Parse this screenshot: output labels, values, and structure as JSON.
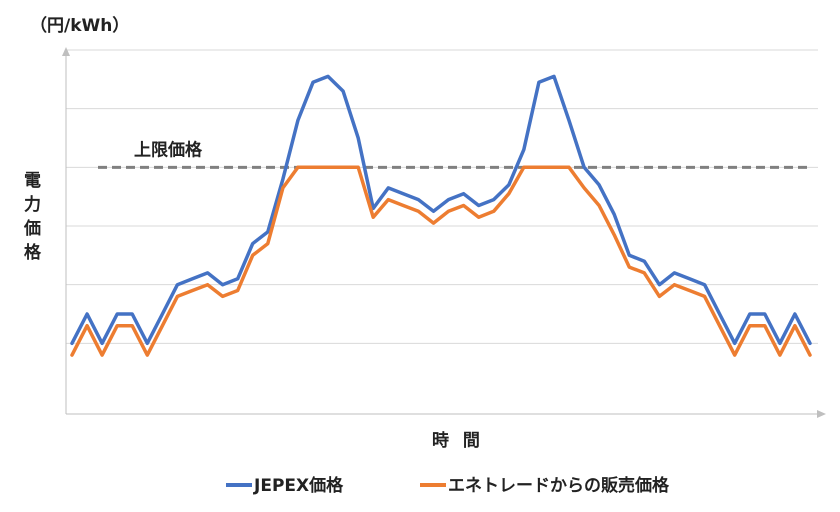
{
  "chart_data": {
    "type": "line",
    "unit_label": "（円/kWh）",
    "ylabel_chars": [
      "電",
      "力",
      "価",
      "格"
    ],
    "xlabel": "時 間",
    "xlim": [
      0,
      49
    ],
    "ylim": [
      0,
      12
    ],
    "y_gridlines": [
      2,
      4,
      6,
      8,
      10,
      12
    ],
    "grid": true,
    "legend_position": "bottom",
    "cap": {
      "label": "上限価格",
      "value": 8,
      "color": "#808080",
      "style": "dashed"
    },
    "series": [
      {
        "name": "JEPEX価格",
        "color": "#4472C4",
        "values": [
          2.0,
          3.0,
          2.0,
          3.0,
          3.0,
          2.0,
          3.0,
          4.0,
          4.2,
          4.4,
          4.0,
          4.2,
          5.4,
          5.8,
          7.6,
          9.6,
          10.9,
          11.1,
          10.6,
          9.0,
          6.6,
          7.3,
          7.1,
          6.9,
          6.5,
          6.9,
          7.1,
          6.7,
          6.9,
          7.4,
          8.6,
          10.9,
          11.1,
          9.6,
          8.0,
          7.4,
          6.4,
          5.0,
          4.8,
          4.0,
          4.4,
          4.2,
          4.0,
          3.0,
          2.0,
          3.0,
          3.0,
          2.0,
          3.0,
          2.0
        ]
      },
      {
        "name": "エネトレードからの販売価格",
        "color": "#ED7D31",
        "values": [
          1.6,
          2.6,
          1.6,
          2.6,
          2.6,
          1.6,
          2.6,
          3.6,
          3.8,
          4.0,
          3.6,
          3.8,
          5.0,
          5.4,
          7.3,
          8.0,
          8.0,
          8.0,
          8.0,
          8.0,
          6.3,
          6.9,
          6.7,
          6.5,
          6.1,
          6.5,
          6.7,
          6.3,
          6.5,
          7.1,
          8.0,
          8.0,
          8.0,
          8.0,
          7.3,
          6.7,
          5.7,
          4.6,
          4.4,
          3.6,
          4.0,
          3.8,
          3.6,
          2.6,
          1.6,
          2.6,
          2.6,
          1.6,
          2.6,
          1.6
        ]
      }
    ]
  }
}
